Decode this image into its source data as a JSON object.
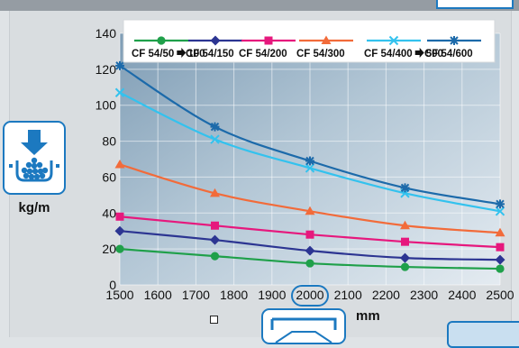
{
  "labels": {
    "y_unit": "kg/m",
    "x_unit": "mm"
  },
  "colors": {
    "accent": "#1c79c0"
  },
  "icons": {
    "left_card": "conveyor-load-icon",
    "bottom_card": "conveyor-icon"
  },
  "chart_data": {
    "type": "line",
    "x": [
      1500,
      1750,
      2000,
      2250,
      2500
    ],
    "xlim": [
      1500,
      2500
    ],
    "ylim": [
      0,
      140
    ],
    "x_ticks": [
      1500,
      1600,
      1700,
      1800,
      1900,
      2000,
      2100,
      2200,
      2300,
      2400,
      2500
    ],
    "y_ticks": [
      0,
      20,
      40,
      60,
      80,
      100,
      120,
      140
    ],
    "highlight_x": 2000,
    "legend_position": "top",
    "grid": true,
    "series": [
      {
        "name": "CF 54/50",
        "name_suffix": "100",
        "color": "#1fa04a",
        "marker": "circle",
        "values": [
          20,
          16,
          12,
          10,
          9
        ]
      },
      {
        "name": "CF 54/150",
        "color": "#2c3592",
        "marker": "diamond",
        "values": [
          30,
          25,
          19,
          15,
          14
        ]
      },
      {
        "name": "CF 54/200",
        "color": "#e6187d",
        "marker": "square",
        "values": [
          38,
          33,
          28,
          24,
          21
        ]
      },
      {
        "name": "CF 54/300",
        "color": "#f26b3a",
        "marker": "triangle",
        "values": [
          67,
          51,
          41,
          33,
          29
        ]
      },
      {
        "name": "CF 54/400",
        "name_suffix": "500",
        "color": "#33c2ee",
        "marker": "x",
        "values": [
          107,
          81,
          65,
          51,
          41
        ]
      },
      {
        "name": "CF 54/600",
        "color": "#1c6aaa",
        "marker": "star",
        "values": [
          122,
          88,
          69,
          54,
          45
        ]
      }
    ]
  }
}
